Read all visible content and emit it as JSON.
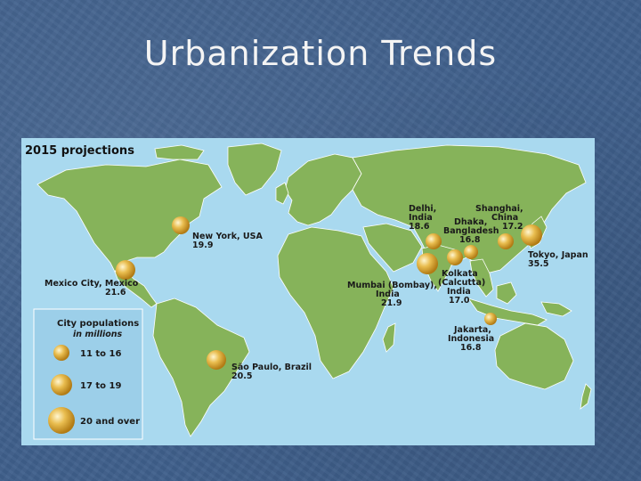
{
  "slide": {
    "title": "Urbanization Trends"
  },
  "map": {
    "heading": "2015 projections",
    "colors": {
      "ocean": "#a9d9ef",
      "land": "#86b35a",
      "land_edge": "#ffffff",
      "marker": "#e7b84a",
      "legend_bg": "#9ccfe9"
    },
    "legend": {
      "title": "City populations",
      "subtitle": "in millions",
      "items": [
        {
          "label": "11 to 16",
          "size": "small"
        },
        {
          "label": "17 to 19",
          "size": "medium"
        },
        {
          "label": "20 and over",
          "size": "large"
        }
      ]
    },
    "cities": [
      {
        "id": "new-york",
        "lines": [
          "New York, USA",
          "19.9"
        ],
        "population": 19.9
      },
      {
        "id": "mexico-city",
        "lines": [
          "Mexico City, Mexico",
          "21.6"
        ],
        "population": 21.6
      },
      {
        "id": "sao-paulo",
        "lines": [
          "São Paulo, Brazil",
          "20.5"
        ],
        "population": 20.5
      },
      {
        "id": "delhi",
        "lines": [
          "Delhi,",
          "India",
          "18.6"
        ],
        "population": 18.6
      },
      {
        "id": "shanghai",
        "lines": [
          "Shanghai,",
          "China",
          "17.2"
        ],
        "population": 17.2
      },
      {
        "id": "dhaka",
        "lines": [
          "Dhaka,",
          "Bangladesh",
          "16.8"
        ],
        "population": 16.8
      },
      {
        "id": "tokyo",
        "lines": [
          "Tokyo, Japan",
          "35.5"
        ],
        "population": 35.5
      },
      {
        "id": "mumbai",
        "lines": [
          "Mumbai (Bombay),",
          "India",
          "21.9"
        ],
        "population": 21.9
      },
      {
        "id": "kolkata",
        "lines": [
          "Kolkata",
          "(Calcutta)",
          "India",
          "17.0"
        ],
        "population": 17.0
      },
      {
        "id": "jakarta",
        "lines": [
          "Jakarta,",
          "Indonesia",
          "16.8"
        ],
        "population": 16.8
      }
    ]
  }
}
